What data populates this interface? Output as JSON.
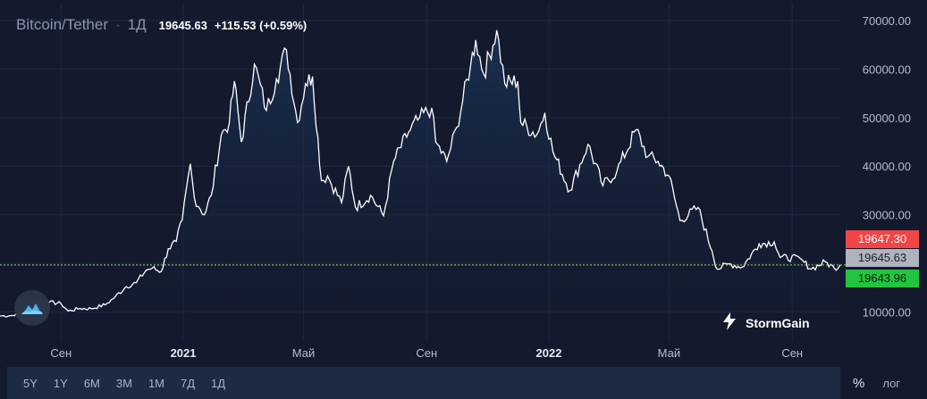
{
  "header": {
    "symbol": "Bitcoin/Tether",
    "separator": "·",
    "timeframe": "1Д",
    "last_price": "19645.63",
    "change": "+115.53 (+0.59%)"
  },
  "price_tags": {
    "ask": "19647.30",
    "last": "19645.63",
    "bid": "19643.96"
  },
  "brand": {
    "name": "StormGain",
    "icon": "stormgain-bolt-icon"
  },
  "left_badge_icon": "stormgain-cloud-icon",
  "toolbar": {
    "ranges": [
      "5Y",
      "1Y",
      "6M",
      "3M",
      "1M",
      "7Д",
      "1Д"
    ],
    "percent_label": "%",
    "log_label": "лог"
  },
  "colors": {
    "background": "#131a2e",
    "line": "#ffffff",
    "area_top": "#1a3254",
    "ask": "#f04646",
    "last": "#aeb3bd",
    "bid": "#22c33e",
    "price_line": "#9bd86a"
  },
  "chart_data": {
    "type": "area",
    "title": "Bitcoin/Tether",
    "xlabel": "",
    "ylabel": "",
    "y_ticks": [
      "70000.00",
      "60000.00",
      "50000.00",
      "40000.00",
      "30000.00",
      "10000.00"
    ],
    "y_tick_values": [
      70000,
      60000,
      50000,
      40000,
      30000,
      10000
    ],
    "x_ticks": [
      {
        "label": "Сен",
        "date": "2020-09-01",
        "bold": false
      },
      {
        "label": "2021",
        "date": "2021-01-01",
        "bold": true
      },
      {
        "label": "Май",
        "date": "2021-05-01",
        "bold": false
      },
      {
        "label": "Сен",
        "date": "2021-09-01",
        "bold": false
      },
      {
        "label": "2022",
        "date": "2022-01-01",
        "bold": true
      },
      {
        "label": "Май",
        "date": "2022-05-01",
        "bold": false
      },
      {
        "label": "Сен",
        "date": "2022-09-01",
        "bold": false
      }
    ],
    "ylim": [
      4000,
      73500
    ],
    "xlim": [
      "2020-07-02",
      "2022-10-19"
    ],
    "grid": true,
    "price_line": 19645.63,
    "series": [
      {
        "points": [
          [
            "2020-07-02",
            9150
          ],
          [
            "2020-07-15",
            9250
          ],
          [
            "2020-07-28",
            10900
          ],
          [
            "2020-08-10",
            11800
          ],
          [
            "2020-08-20",
            11950
          ],
          [
            "2020-09-01",
            11700
          ],
          [
            "2020-09-08",
            10150
          ],
          [
            "2020-09-20",
            10700
          ],
          [
            "2020-10-01",
            10650
          ],
          [
            "2020-10-15",
            11450
          ],
          [
            "2020-10-25",
            13100
          ],
          [
            "2020-11-05",
            15200
          ],
          [
            "2020-11-15",
            16000
          ],
          [
            "2020-11-25",
            18600
          ],
          [
            "2020-12-01",
            19000
          ],
          [
            "2020-12-10",
            18300
          ],
          [
            "2020-12-17",
            23000
          ],
          [
            "2020-12-25",
            24500
          ],
          [
            "2020-12-31",
            29000
          ],
          [
            "2021-01-08",
            40500
          ],
          [
            "2021-01-12",
            33500
          ],
          [
            "2021-01-22",
            30000
          ],
          [
            "2021-01-29",
            34000
          ],
          [
            "2021-02-08",
            46500
          ],
          [
            "2021-02-16",
            49000
          ],
          [
            "2021-02-21",
            57500
          ],
          [
            "2021-02-28",
            45000
          ],
          [
            "2021-03-13",
            61000
          ],
          [
            "2021-03-25",
            51500
          ],
          [
            "2021-04-04",
            58000
          ],
          [
            "2021-04-14",
            64000
          ],
          [
            "2021-04-25",
            49000
          ],
          [
            "2021-05-03",
            57000
          ],
          [
            "2021-05-10",
            58500
          ],
          [
            "2021-05-19",
            37000
          ],
          [
            "2021-05-25",
            38000
          ],
          [
            "2021-06-08",
            32500
          ],
          [
            "2021-06-15",
            40000
          ],
          [
            "2021-06-22",
            31500
          ],
          [
            "2021-07-07",
            34000
          ],
          [
            "2021-07-20",
            29800
          ],
          [
            "2021-07-30",
            41000
          ],
          [
            "2021-08-14",
            47000
          ],
          [
            "2021-08-23",
            49500
          ],
          [
            "2021-09-06",
            52000
          ],
          [
            "2021-09-10",
            45000
          ],
          [
            "2021-09-21",
            41000
          ],
          [
            "2021-10-01",
            48000
          ],
          [
            "2021-10-15",
            61000
          ],
          [
            "2021-10-20",
            66000
          ],
          [
            "2021-10-28",
            59000
          ],
          [
            "2021-11-10",
            68000
          ],
          [
            "2021-11-18",
            57000
          ],
          [
            "2021-12-01",
            57500
          ],
          [
            "2021-12-04",
            49000
          ],
          [
            "2021-12-20",
            46500
          ],
          [
            "2021-12-28",
            51000
          ],
          [
            "2022-01-05",
            43000
          ],
          [
            "2022-01-22",
            35000
          ],
          [
            "2022-02-09",
            44500
          ],
          [
            "2022-02-24",
            36000
          ],
          [
            "2022-03-10",
            39000
          ],
          [
            "2022-03-29",
            47500
          ],
          [
            "2022-04-10",
            42000
          ],
          [
            "2022-04-20",
            41000
          ],
          [
            "2022-05-01",
            38000
          ],
          [
            "2022-05-12",
            28800
          ],
          [
            "2022-05-30",
            31500
          ],
          [
            "2022-06-13",
            22500
          ],
          [
            "2022-06-18",
            18800
          ],
          [
            "2022-06-30",
            19900
          ],
          [
            "2022-07-13",
            19200
          ],
          [
            "2022-07-30",
            24000
          ],
          [
            "2022-08-14",
            24400
          ],
          [
            "2022-08-20",
            21200
          ],
          [
            "2022-09-09",
            21000
          ],
          [
            "2022-09-13",
            20200
          ],
          [
            "2022-09-20",
            18800
          ],
          [
            "2022-10-04",
            20300
          ],
          [
            "2022-10-13",
            19000
          ],
          [
            "2022-10-19",
            19645
          ]
        ]
      }
    ]
  }
}
